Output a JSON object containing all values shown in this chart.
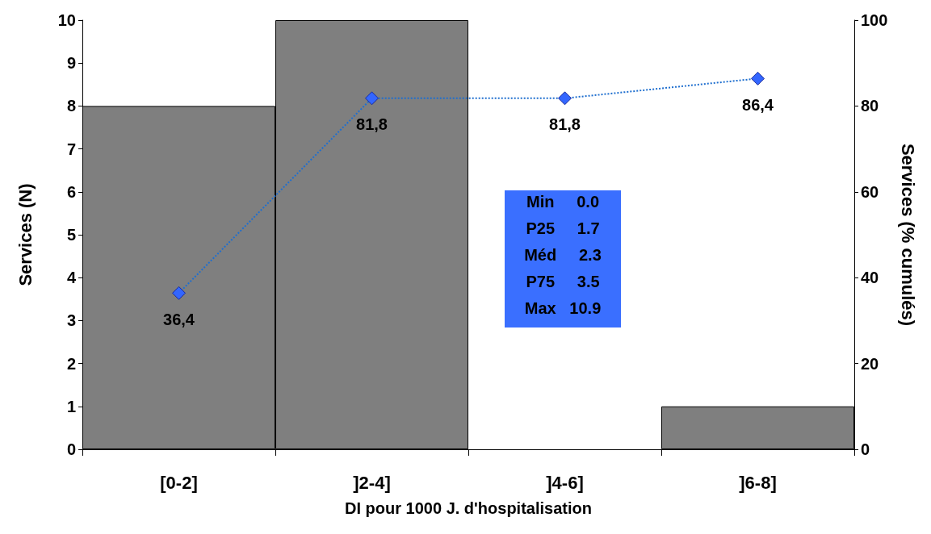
{
  "chart_data": {
    "type": "bar",
    "xlabel": "DI pour 1000 J. d'hospitalisation",
    "ylabel": "Services (N)",
    "y2label": "Services (% cumulés)",
    "categories": [
      "[0-2]",
      "]2-4]",
      "]4-6]",
      "]6-8]"
    ],
    "series": [
      {
        "color": "#7f7f7f",
        "values": [
          8,
          10,
          0,
          1
        ]
      },
      {
        "type": "line",
        "axis": "y2",
        "color": "#3366ff",
        "marker": "diamond",
        "line_style": "dotted",
        "values": [
          36.4,
          81.8,
          81.8,
          86.4
        ],
        "value_labels": [
          "36,4",
          "81,8",
          "81,8",
          "86,4"
        ]
      }
    ],
    "ylim": [
      0,
      10
    ],
    "yticks": [
      0,
      1,
      2,
      3,
      4,
      5,
      6,
      7,
      8,
      9,
      10
    ],
    "y2lim": [
      0,
      100
    ],
    "y2ticks": [
      0,
      20,
      40,
      60,
      80,
      100
    ],
    "annotations": [
      "Min     0.0",
      "P25     1.7",
      "Méd     2.3",
      "P75     3.5",
      "Max   10.9"
    ],
    "grid": false
  }
}
